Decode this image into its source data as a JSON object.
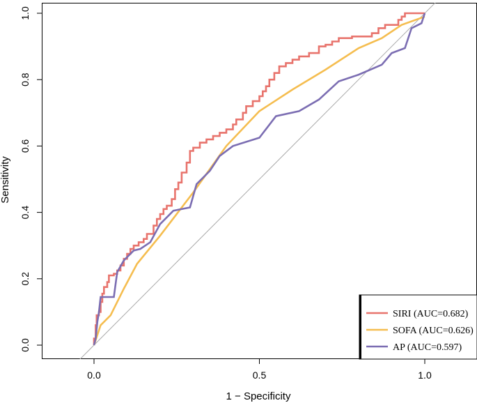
{
  "chart_data": {
    "type": "line",
    "title": "",
    "xlabel": "1 − Specificity",
    "ylabel": "Sensitivity",
    "xlim": [
      -0.15,
      1.15
    ],
    "ylim": [
      -0.04,
      1.02
    ],
    "x_ticks": [
      0.0,
      0.5,
      1.0
    ],
    "x_tick_labels": [
      "0.0",
      "0.5",
      "1.0"
    ],
    "y_ticks": [
      0.0,
      0.2,
      0.4,
      0.6,
      0.8,
      1.0
    ],
    "y_tick_labels": [
      "0.0",
      "0.2",
      "0.4",
      "0.6",
      "0.8",
      "1.0"
    ],
    "grid": false,
    "legend_position": "bottom-right",
    "reference_line": {
      "from": [
        0,
        0
      ],
      "to": [
        1,
        1
      ],
      "color": "#aaaaaa"
    },
    "series": [
      {
        "name": "SIRI",
        "label": "SIRI (AUC=0.682)",
        "color": "#e8736c",
        "step": true,
        "points": [
          [
            0,
            0
          ],
          [
            0,
            0.02
          ],
          [
            0.005,
            0.04
          ],
          [
            0.005,
            0.06
          ],
          [
            0.008,
            0.09
          ],
          [
            0.015,
            0.1
          ],
          [
            0.02,
            0.13
          ],
          [
            0.025,
            0.155
          ],
          [
            0.03,
            0.175
          ],
          [
            0.04,
            0.19
          ],
          [
            0.045,
            0.21
          ],
          [
            0.06,
            0.215
          ],
          [
            0.07,
            0.225
          ],
          [
            0.08,
            0.24
          ],
          [
            0.09,
            0.26
          ],
          [
            0.1,
            0.275
          ],
          [
            0.11,
            0.29
          ],
          [
            0.12,
            0.3
          ],
          [
            0.135,
            0.31
          ],
          [
            0.15,
            0.32
          ],
          [
            0.16,
            0.335
          ],
          [
            0.18,
            0.36
          ],
          [
            0.19,
            0.38
          ],
          [
            0.2,
            0.395
          ],
          [
            0.21,
            0.41
          ],
          [
            0.22,
            0.42
          ],
          [
            0.235,
            0.44
          ],
          [
            0.245,
            0.47
          ],
          [
            0.255,
            0.49
          ],
          [
            0.265,
            0.52
          ],
          [
            0.28,
            0.55
          ],
          [
            0.29,
            0.585
          ],
          [
            0.3,
            0.595
          ],
          [
            0.32,
            0.61
          ],
          [
            0.34,
            0.62
          ],
          [
            0.36,
            0.63
          ],
          [
            0.38,
            0.64
          ],
          [
            0.4,
            0.65
          ],
          [
            0.42,
            0.665
          ],
          [
            0.43,
            0.68
          ],
          [
            0.45,
            0.7
          ],
          [
            0.46,
            0.72
          ],
          [
            0.48,
            0.735
          ],
          [
            0.5,
            0.75
          ],
          [
            0.51,
            0.765
          ],
          [
            0.52,
            0.78
          ],
          [
            0.53,
            0.8
          ],
          [
            0.545,
            0.82
          ],
          [
            0.56,
            0.84
          ],
          [
            0.58,
            0.85
          ],
          [
            0.6,
            0.86
          ],
          [
            0.62,
            0.87
          ],
          [
            0.65,
            0.88
          ],
          [
            0.68,
            0.9
          ],
          [
            0.7,
            0.905
          ],
          [
            0.72,
            0.915
          ],
          [
            0.74,
            0.925
          ],
          [
            0.78,
            0.93
          ],
          [
            0.84,
            0.94
          ],
          [
            0.86,
            0.955
          ],
          [
            0.88,
            0.965
          ],
          [
            0.92,
            0.98
          ],
          [
            0.93,
            0.99
          ],
          [
            0.94,
            1.0
          ],
          [
            1.0,
            1.0
          ]
        ]
      },
      {
        "name": "SOFA",
        "label": "SOFA (AUC=0.626)",
        "color": "#f5bd4f",
        "step": false,
        "points": [
          [
            0,
            0
          ],
          [
            0.02,
            0.06
          ],
          [
            0.05,
            0.09
          ],
          [
            0.09,
            0.17
          ],
          [
            0.13,
            0.245
          ],
          [
            0.2,
            0.33
          ],
          [
            0.3,
            0.46
          ],
          [
            0.4,
            0.6
          ],
          [
            0.5,
            0.705
          ],
          [
            0.6,
            0.77
          ],
          [
            0.7,
            0.83
          ],
          [
            0.8,
            0.895
          ],
          [
            0.87,
            0.925
          ],
          [
            0.93,
            0.965
          ],
          [
            1.0,
            0.99
          ]
        ]
      },
      {
        "name": "AP",
        "label": "AP (AUC=0.597)",
        "color": "#7b6db2",
        "step": false,
        "points": [
          [
            0,
            0
          ],
          [
            0.005,
            0.02
          ],
          [
            0.01,
            0.07
          ],
          [
            0.015,
            0.1
          ],
          [
            0.02,
            0.145
          ],
          [
            0.06,
            0.145
          ],
          [
            0.07,
            0.22
          ],
          [
            0.09,
            0.255
          ],
          [
            0.12,
            0.285
          ],
          [
            0.14,
            0.29
          ],
          [
            0.17,
            0.31
          ],
          [
            0.2,
            0.365
          ],
          [
            0.24,
            0.405
          ],
          [
            0.29,
            0.415
          ],
          [
            0.31,
            0.485
          ],
          [
            0.35,
            0.525
          ],
          [
            0.38,
            0.57
          ],
          [
            0.42,
            0.6
          ],
          [
            0.5,
            0.625
          ],
          [
            0.55,
            0.69
          ],
          [
            0.62,
            0.705
          ],
          [
            0.68,
            0.74
          ],
          [
            0.74,
            0.795
          ],
          [
            0.8,
            0.815
          ],
          [
            0.87,
            0.845
          ],
          [
            0.9,
            0.88
          ],
          [
            0.94,
            0.895
          ],
          [
            0.96,
            0.955
          ],
          [
            0.99,
            0.97
          ],
          [
            1.0,
            1.0
          ]
        ]
      }
    ]
  }
}
